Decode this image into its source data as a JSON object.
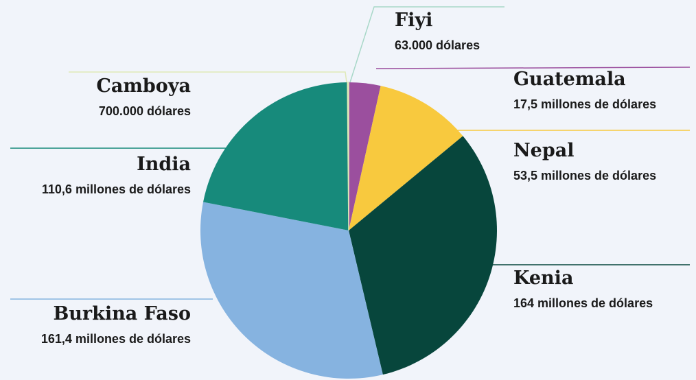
{
  "chart_data": {
    "type": "pie",
    "categories": [
      "Fiyi",
      "Guatemala",
      "Nepal",
      "Kenia",
      "Burkina Faso",
      "India",
      "Camboya"
    ],
    "values": [
      63000,
      17500000,
      53500000,
      164000000,
      161400000,
      110600000,
      700000
    ],
    "value_labels": [
      "63.000 dólares",
      "17,5 millones de dólares",
      "53,5 millones de dólares",
      "164 millones de dólares",
      "161,4 millones de dólares",
      "110,6 millones de dólares",
      "700.000 dólares"
    ],
    "colors": [
      "#a8d8c8",
      "#9b4f9e",
      "#f8c93e",
      "#07463c",
      "#86b3e0",
      "#178a7b",
      "#dfe9b8"
    ]
  }
}
